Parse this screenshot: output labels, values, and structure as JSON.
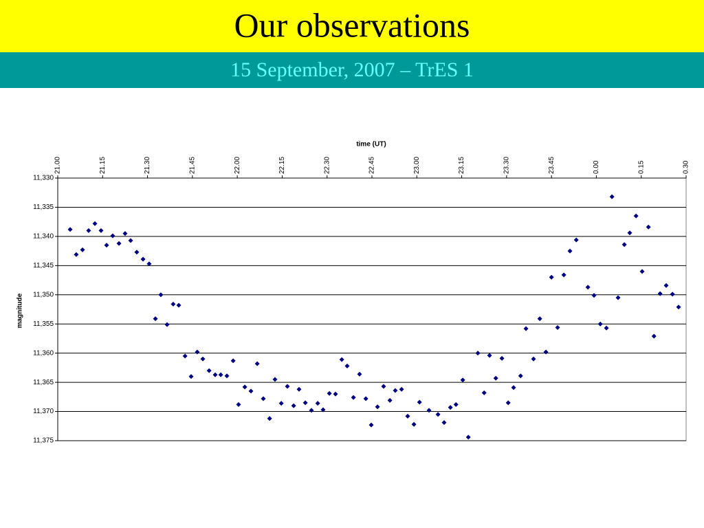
{
  "header": {
    "title": "Our observations",
    "subtitle": "15 September, 2007 – TrES 1"
  },
  "chart_data": {
    "type": "scatter",
    "xlabel": "time (UT)",
    "ylabel": "magnitude",
    "color": "#00007f",
    "y_reversed": true,
    "grid": true,
    "xlim": [
      21,
      24.5
    ],
    "xticks": [
      {
        "value": 21,
        "label": "21.00"
      },
      {
        "value": 21.25,
        "label": "21.15"
      },
      {
        "value": 21.5,
        "label": "21.30"
      },
      {
        "value": 21.75,
        "label": "21.45"
      },
      {
        "value": 22,
        "label": "22.00"
      },
      {
        "value": 22.25,
        "label": "22.15"
      },
      {
        "value": 22.5,
        "label": "22.30"
      },
      {
        "value": 22.75,
        "label": "22.45"
      },
      {
        "value": 23,
        "label": "23.00"
      },
      {
        "value": 23.25,
        "label": "23.15"
      },
      {
        "value": 23.5,
        "label": "23.30"
      },
      {
        "value": 23.75,
        "label": "23.45"
      },
      {
        "value": 24,
        "label": "0.00"
      },
      {
        "value": 24.25,
        "label": "0.15"
      },
      {
        "value": 24.5,
        "label": "0.30"
      }
    ],
    "ylim": [
      11.33,
      11.375
    ],
    "yticks": [
      {
        "value": 11.33,
        "label": "11,330"
      },
      {
        "value": 11.335,
        "label": "11,335"
      },
      {
        "value": 11.34,
        "label": "11,340"
      },
      {
        "value": 11.345,
        "label": "11,345"
      },
      {
        "value": 11.35,
        "label": "11,350"
      },
      {
        "value": 11.355,
        "label": "11,355"
      },
      {
        "value": 11.36,
        "label": "11,360"
      },
      {
        "value": 11.365,
        "label": "11,365"
      },
      {
        "value": 11.37,
        "label": "11,370"
      },
      {
        "value": 11.375,
        "label": "11,375"
      }
    ],
    "x": [
      21.069,
      21.103,
      21.138,
      21.172,
      21.207,
      21.241,
      21.272,
      21.306,
      21.341,
      21.375,
      21.406,
      21.44,
      21.475,
      21.509,
      21.544,
      21.574,
      21.609,
      21.643,
      21.674,
      21.709,
      21.743,
      21.777,
      21.808,
      21.843,
      21.877,
      21.908,
      21.942,
      21.977,
      22.007,
      22.042,
      22.076,
      22.111,
      22.145,
      22.18,
      22.21,
      22.245,
      22.279,
      22.314,
      22.344,
      22.379,
      22.413,
      22.448,
      22.478,
      22.513,
      22.547,
      22.582,
      22.612,
      22.647,
      22.681,
      22.716,
      22.746,
      22.781,
      22.815,
      22.85,
      22.88,
      22.915,
      22.949,
      22.984,
      23.015,
      23.068,
      23.118,
      23.152,
      23.187,
      23.218,
      23.256,
      23.287,
      23.34,
      23.375,
      23.405,
      23.44,
      23.474,
      23.509,
      23.539,
      23.578,
      23.608,
      23.65,
      23.685,
      23.719,
      23.75,
      23.784,
      23.819,
      23.853,
      23.888,
      23.953,
      23.987,
      24.022,
      24.056,
      24.087,
      24.121,
      24.156,
      24.186,
      24.221,
      24.255,
      24.29,
      24.321,
      24.355,
      24.389,
      24.424,
      24.458
    ],
    "values": [
      11.3388,
      11.3431,
      11.3423,
      11.339,
      11.3378,
      11.339,
      11.3415,
      11.3399,
      11.3412,
      11.3395,
      11.3407,
      11.3427,
      11.3439,
      11.3447,
      11.3541,
      11.35,
      11.3551,
      11.3516,
      11.3518,
      11.3605,
      11.364,
      11.3598,
      11.361,
      11.363,
      11.3637,
      11.3637,
      11.3639,
      11.3613,
      11.3688,
      11.3658,
      11.3665,
      11.3618,
      11.3678,
      11.3712,
      11.3645,
      11.3686,
      11.3657,
      11.369,
      11.3662,
      11.3685,
      11.3698,
      11.3686,
      11.3697,
      11.3669,
      11.367,
      11.3611,
      11.3622,
      11.3676,
      11.3636,
      11.3678,
      11.3723,
      11.3692,
      11.3657,
      11.3681,
      11.3664,
      11.3662,
      11.3708,
      11.3722,
      11.3684,
      11.3698,
      11.3705,
      11.3719,
      11.3693,
      11.3688,
      11.3646,
      11.3744,
      11.36,
      11.3668,
      11.3604,
      11.3643,
      11.3609,
      11.3685,
      11.3659,
      11.3639,
      11.3558,
      11.361,
      11.3541,
      11.3598,
      11.347,
      11.3556,
      11.3466,
      11.3425,
      11.3406,
      11.3487,
      11.3501,
      11.355,
      11.3557,
      11.3332,
      11.3505,
      11.3414,
      11.3394,
      11.3365,
      11.346,
      11.3384,
      11.3571,
      11.3498,
      11.3484,
      11.3499,
      11.3521
    ]
  }
}
